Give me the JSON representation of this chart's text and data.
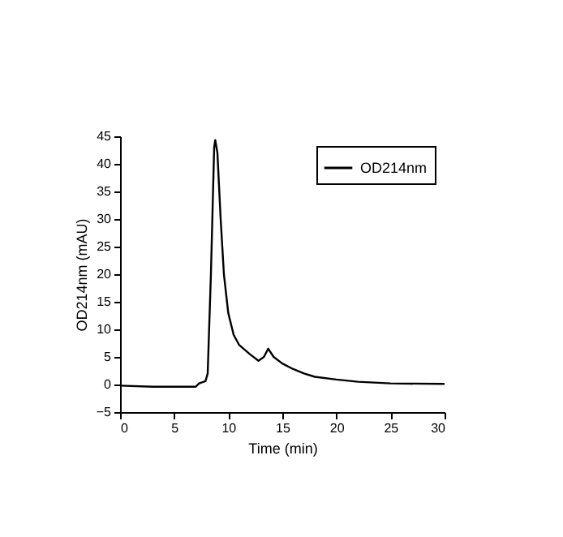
{
  "chart_data": {
    "type": "line",
    "xlabel": "Time (min)",
    "ylabel": "OD214nm (mAU)",
    "xlim": [
      0,
      30
    ],
    "xticks": [
      0,
      5,
      10,
      15,
      20,
      25,
      30
    ],
    "ylim": [
      -5,
      45
    ],
    "yticks": [
      -5,
      0,
      5,
      10,
      15,
      20,
      25,
      30,
      35,
      40,
      45
    ],
    "grid": false,
    "legend": "top right",
    "marker": "none",
    "line_style": "solid",
    "series": [
      {
        "name": "OD214nm",
        "color": "#000000",
        "x": [
          0,
          3,
          7,
          7.3,
          7.9,
          8.1,
          8.4,
          8.7,
          8.8,
          9.0,
          9.3,
          9.6,
          10,
          10.5,
          11,
          12,
          12.8,
          13.3,
          13.7,
          14.2,
          15,
          16,
          17,
          18,
          20,
          22,
          25,
          30
        ],
        "values": [
          -0.2,
          -0.4,
          -0.4,
          0.2,
          0.6,
          2,
          20,
          43,
          44.3,
          42,
          30,
          20,
          13,
          9,
          7.2,
          5.5,
          4.3,
          5,
          6.5,
          5,
          3.8,
          2.8,
          2,
          1.4,
          0.9,
          0.5,
          0.2,
          0.1
        ]
      }
    ]
  }
}
